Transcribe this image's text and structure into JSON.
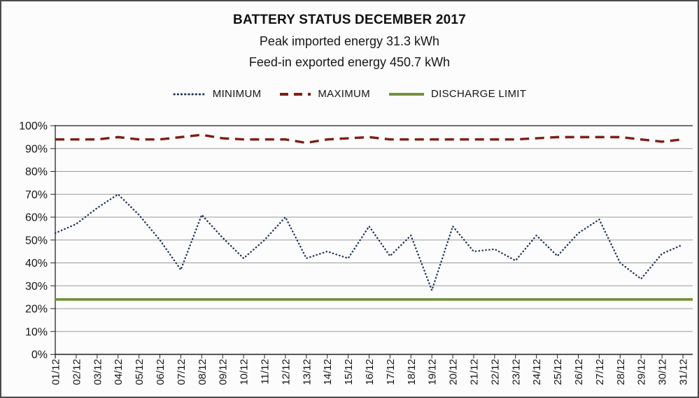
{
  "header": {
    "title": "BATTERY STATUS DECEMBER 2017",
    "subtitle1": "Peak imported energy 31.3 kWh",
    "subtitle2": "Feed-in exported energy 450.7 kWh"
  },
  "chart_data": {
    "type": "line",
    "title": "BATTERY STATUS DECEMBER 2017",
    "xlabel": "",
    "ylabel": "",
    "ylim": [
      0,
      100
    ],
    "grid": true,
    "legend_position": "top",
    "y_tick_labels": [
      "0%",
      "10%",
      "20%",
      "30%",
      "40%",
      "50%",
      "60%",
      "70%",
      "80%",
      "90%",
      "100%"
    ],
    "x_labels": [
      "01/12",
      "02/12",
      "03/12",
      "04/12",
      "05/12",
      "06/12",
      "07/12",
      "08/12",
      "09/12",
      "10/12",
      "11/12",
      "12/12",
      "13/12",
      "14/12",
      "15/12",
      "16/12",
      "17/12",
      "18/12",
      "19/12",
      "20/12",
      "21/12",
      "22/12",
      "23/12",
      "24/12",
      "25/12",
      "26/12",
      "27/12",
      "28/12",
      "29/12",
      "30/12",
      "31/12"
    ],
    "series": [
      {
        "name": "MINIMUM",
        "style": "dotted",
        "color": "#1f3457",
        "unit": "%",
        "values": [
          53,
          57,
          64,
          70,
          61,
          50,
          37,
          61,
          51,
          42,
          50,
          60,
          42,
          45,
          42,
          56,
          43,
          52,
          28,
          56,
          45,
          46,
          41,
          52,
          43,
          53,
          59,
          40,
          33,
          44,
          48
        ]
      },
      {
        "name": "MAXIMUM",
        "style": "dashed",
        "color": "#7e1e14",
        "unit": "%",
        "values": [
          94,
          94,
          94,
          95,
          94,
          94,
          95,
          96,
          94.5,
          94,
          94,
          94,
          92.5,
          94,
          94.5,
          95,
          94,
          94,
          94,
          94,
          94,
          94,
          94,
          94.5,
          95,
          95,
          95,
          95,
          94,
          93,
          94
        ]
      },
      {
        "name": "DISCHARGE LIMIT",
        "style": "solid",
        "color": "#76923c",
        "unit": "%",
        "values": 24
      }
    ]
  }
}
